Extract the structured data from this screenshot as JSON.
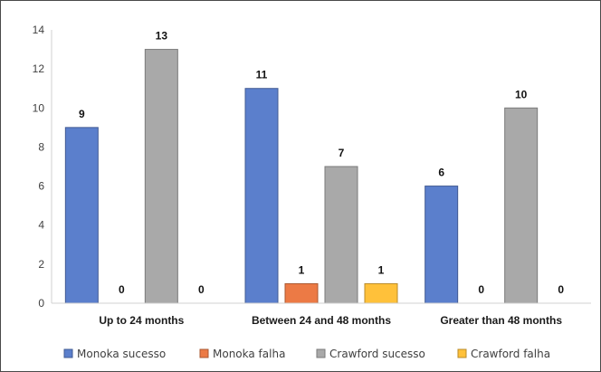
{
  "chart_data": {
    "type": "bar",
    "title": "",
    "xlabel": "",
    "ylabel": "",
    "ylim": [
      0,
      14
    ],
    "yticks": [
      0,
      2,
      4,
      6,
      8,
      10,
      12,
      14
    ],
    "grid": false,
    "legend_position": "bottom",
    "categories": [
      "Up to 24 months",
      "Between 24 and 48 months",
      "Greater than 48 months"
    ],
    "series": [
      {
        "name": "Monoka sucesso",
        "values": [
          9,
          11,
          6
        ],
        "color": "#5B7FCC"
      },
      {
        "name": "Monoka falha",
        "values": [
          0,
          1,
          0
        ],
        "color": "#EC7A45"
      },
      {
        "name": "Crawford sucesso",
        "values": [
          13,
          7,
          10
        ],
        "color": "#A9A9A9"
      },
      {
        "name": "Crawford falha",
        "values": [
          0,
          1,
          0
        ],
        "color": "#FFC13A"
      }
    ]
  }
}
